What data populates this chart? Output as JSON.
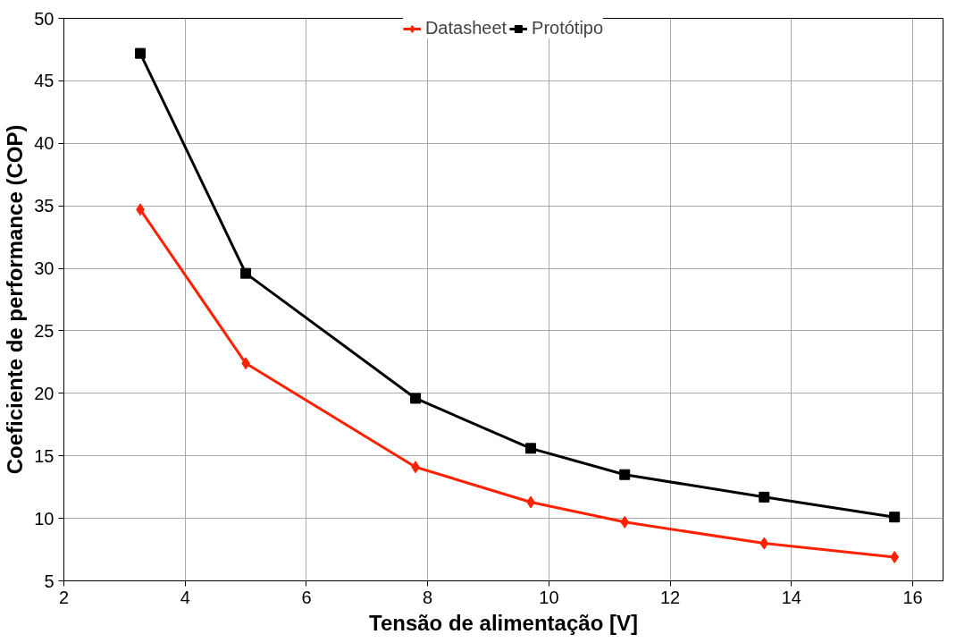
{
  "chart_data": {
    "type": "line",
    "xlabel": "Tensão de alimentação [V]",
    "ylabel": "Coeficiente de performance (COP)",
    "x": [
      3.26,
      5.0,
      7.8,
      9.7,
      11.25,
      13.55,
      15.7
    ],
    "series": [
      {
        "name": "Datasheet",
        "color": "#ff2200",
        "marker": "diamond",
        "values": [
          34.7,
          22.4,
          14.1,
          11.3,
          9.7,
          8.0,
          6.9
        ]
      },
      {
        "name": "Protótipo",
        "color": "#000000",
        "marker": "square",
        "values": [
          47.2,
          29.6,
          19.6,
          15.6,
          13.5,
          11.7,
          10.1
        ]
      }
    ],
    "xlim": [
      2,
      16.5
    ],
    "xticks": [
      2,
      4,
      6,
      8,
      10,
      12,
      14,
      16
    ],
    "ylim": [
      5,
      50
    ],
    "yticks": [
      5,
      10,
      15,
      20,
      25,
      30,
      35,
      40,
      45,
      50
    ],
    "grid": true,
    "legend": "top",
    "line_style": "solid"
  }
}
